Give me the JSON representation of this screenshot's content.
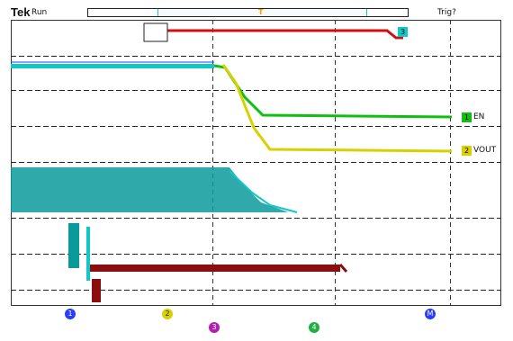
{
  "header": {
    "brand": "Tek",
    "run_state": "Run",
    "trigger_status": "Trig?",
    "trigger_marker": "T"
  },
  "channels": {
    "ch1_label": "EN",
    "ch2_label": "VOUT"
  },
  "bottom_badges": [
    {
      "id": "1",
      "color": "#2a3cff"
    },
    {
      "id": "2",
      "color": "#e6e600"
    },
    {
      "id": "3",
      "color": "#b020b0"
    },
    {
      "id": "4",
      "color": "#20b040"
    },
    {
      "id": "M",
      "color": "#2a3cff"
    }
  ],
  "colors": {
    "ch1_green": "#10c010",
    "ch2_yellow": "#d8d000",
    "cyan": "#10c8c8",
    "teal": "#0a9a9a",
    "dark_red": "#8a0e0e",
    "bright_red": "#d01010",
    "trigger_orange": "#ff9900"
  },
  "icons": {
    "trigger_marker": "trigger-marker-icon",
    "ch1_marker": "ch1-ground-marker-icon",
    "ch2_marker": "ch2-ground-marker-icon",
    "ch3_marker": "ch3-marker-icon",
    "ch4_marker": "ch4-marker-icon"
  }
}
